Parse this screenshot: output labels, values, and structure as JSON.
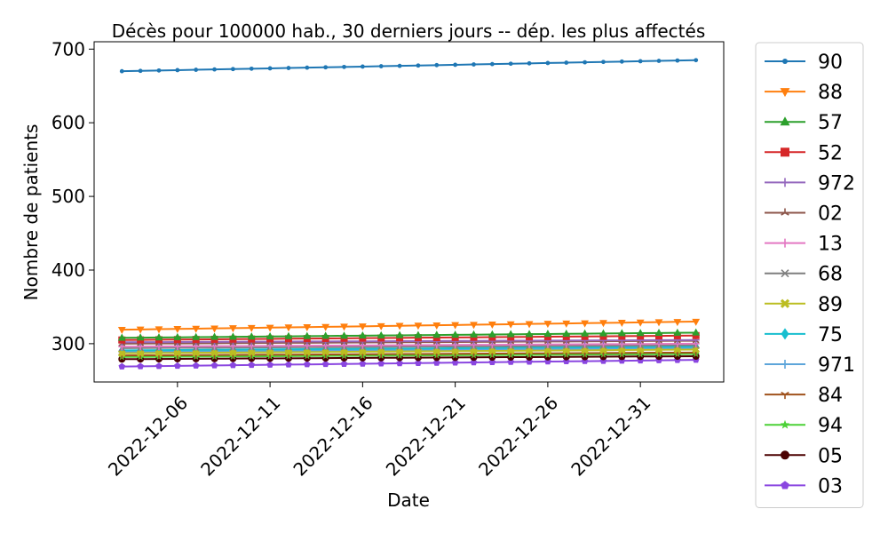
{
  "chart_data": {
    "type": "line",
    "title": "Décès pour 100000 hab., 30 derniers jours -- dép. les plus affectés",
    "xlabel": "Date",
    "ylabel": "Nombre de patients",
    "x_start": "2022-12-03",
    "x": [
      "2022-12-03",
      "2022-12-04",
      "2022-12-05",
      "2022-12-06",
      "2022-12-07",
      "2022-12-08",
      "2022-12-09",
      "2022-12-10",
      "2022-12-11",
      "2022-12-12",
      "2022-12-13",
      "2022-12-14",
      "2022-12-15",
      "2022-12-16",
      "2022-12-17",
      "2022-12-18",
      "2022-12-19",
      "2022-12-20",
      "2022-12-21",
      "2022-12-22",
      "2022-12-23",
      "2022-12-24",
      "2022-12-25",
      "2022-12-26",
      "2022-12-27",
      "2022-12-28",
      "2022-12-29",
      "2022-12-30",
      "2022-12-31",
      "2023-01-01",
      "2023-01-02",
      "2023-01-03"
    ],
    "xticks": [
      "2022-12-06",
      "2022-12-11",
      "2022-12-16",
      "2022-12-21",
      "2022-12-26",
      "2022-12-31"
    ],
    "yticks": [
      300,
      400,
      500,
      600,
      700
    ],
    "ylim": [
      248,
      710
    ],
    "grid": false,
    "legend_position": "outside-right",
    "series": [
      {
        "name": "90",
        "color": "#1f77b4",
        "marker": "point",
        "start": 670,
        "end": 685
      },
      {
        "name": "88",
        "color": "#ff7f0e",
        "marker": "triangle-down",
        "start": 319,
        "end": 330
      },
      {
        "name": "57",
        "color": "#2ca02c",
        "marker": "triangle-up",
        "start": 308,
        "end": 315
      },
      {
        "name": "52",
        "color": "#d62728",
        "marker": "square",
        "start": 305,
        "end": 311
      },
      {
        "name": "972",
        "color": "#9467bd",
        "marker": "plus",
        "start": 302,
        "end": 305
      },
      {
        "name": "02",
        "color": "#8c564b",
        "marker": "tri-up",
        "start": 300,
        "end": 304
      },
      {
        "name": "13",
        "color": "#e377c2",
        "marker": "plus",
        "start": 296,
        "end": 300
      },
      {
        "name": "68",
        "color": "#7f7f7f",
        "marker": "x",
        "start": 294,
        "end": 298
      },
      {
        "name": "89",
        "color": "#bcbd22",
        "marker": "x-filled",
        "start": 287,
        "end": 292
      },
      {
        "name": "75",
        "color": "#17becf",
        "marker": "diamond",
        "start": 291,
        "end": 296
      },
      {
        "name": "971",
        "color": "#5da5da",
        "marker": "plus",
        "start": 289,
        "end": 294
      },
      {
        "name": "84",
        "color": "#a0521d",
        "marker": "tri-down",
        "start": 284,
        "end": 288
      },
      {
        "name": "94",
        "color": "#4cd137",
        "marker": "star",
        "start": 282,
        "end": 286
      },
      {
        "name": "05",
        "color": "#4b0000",
        "marker": "circle",
        "start": 279,
        "end": 283
      },
      {
        "name": "03",
        "color": "#8a46e0",
        "marker": "pentagon",
        "start": 269,
        "end": 278
      }
    ]
  }
}
